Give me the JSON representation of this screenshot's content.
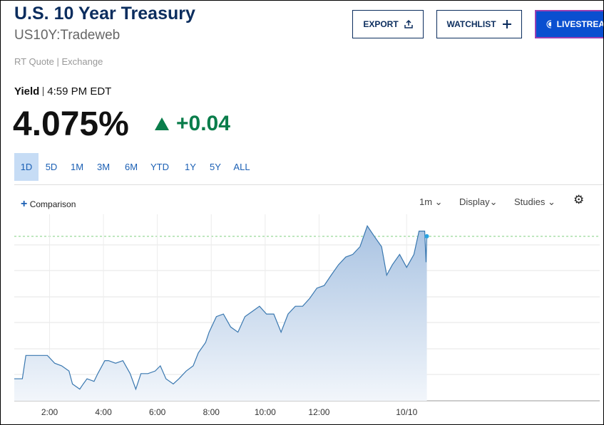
{
  "header": {
    "title": "U.S. 10 Year Treasury",
    "symbol": "US10Y:Tradeweb",
    "source": "RT Quote | Exchange"
  },
  "buttons": [
    "EXPORT",
    "WATCHLIST",
    "LIVESTREAM"
  ],
  "quote": {
    "label": "Yield",
    "time": "4:59 PM EDT",
    "last": "4.075%",
    "change": "+0.04"
  },
  "ranges": [
    "1D",
    "5D",
    "1M",
    "3M",
    "6M",
    "YTD",
    "1Y",
    "5Y",
    "ALL"
  ],
  "toolbar": {
    "comparison": "Comparison",
    "interval": "1m",
    "display": "Display",
    "studies": "Studies"
  },
  "chart_data": {
    "type": "area",
    "color": "#3a78b0",
    "x": [
      0.69,
      0.99,
      1.12,
      1.39,
      1.65,
      1.92,
      2.19,
      2.45,
      2.72,
      2.85,
      3.12,
      3.25,
      3.39,
      3.65,
      3.79,
      4.05,
      4.19,
      4.45,
      4.72,
      4.99,
      5.2,
      5.39,
      5.65,
      5.92,
      6.11,
      6.32,
      6.59,
      6.8,
      7.07,
      7.33,
      7.52,
      7.79,
      7.92,
      8.19,
      8.45,
      8.72,
      8.99,
      9.25,
      9.52,
      9.79,
      10.05,
      10.32,
      10.59,
      10.85,
      11.12,
      11.39,
      11.65,
      11.92,
      12.19,
      12.45,
      12.72,
      12.99,
      13.25,
      13.52,
      13.79,
      14.05,
      14.32,
      14.51,
      14.72,
      14.99,
      15.25,
      15.52,
      15.71,
      15.92,
      15.97,
      16.0
    ],
    "values": [
      4.02,
      4.02,
      4.029,
      4.029,
      4.029,
      4.029,
      4.026,
      4.025,
      4.023,
      4.018,
      4.016,
      4.018,
      4.02,
      4.019,
      4.022,
      4.027,
      4.027,
      4.026,
      4.027,
      4.022,
      4.016,
      4.022,
      4.022,
      4.023,
      4.025,
      4.02,
      4.018,
      4.02,
      4.023,
      4.025,
      4.03,
      4.034,
      4.038,
      4.044,
      4.045,
      4.04,
      4.038,
      4.044,
      4.046,
      4.048,
      4.045,
      4.045,
      4.038,
      4.045,
      4.048,
      4.048,
      4.051,
      4.055,
      4.056,
      4.06,
      4.064,
      4.067,
      4.068,
      4.071,
      4.079,
      4.075,
      4.071,
      4.06,
      4.064,
      4.068,
      4.063,
      4.068,
      4.077,
      4.077,
      4.065,
      4.075
    ],
    "xlim": [
      0.69,
      22.6
    ],
    "ylim": [
      4.0115,
      4.0835
    ],
    "xticks": [
      {
        "value": 2,
        "label": "2:00"
      },
      {
        "value": 4,
        "label": "4:00"
      },
      {
        "value": 6,
        "label": "6:00"
      },
      {
        "value": 8,
        "label": "8:00"
      },
      {
        "value": 10,
        "label": "10:00"
      },
      {
        "value": 12,
        "label": "12:00"
      },
      {
        "value": 15.25,
        "label": "10/10"
      }
    ]
  }
}
